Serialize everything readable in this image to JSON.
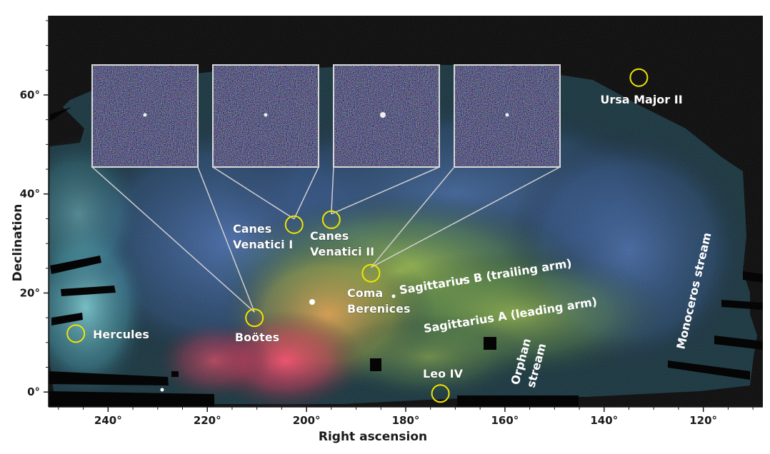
{
  "chart_data": {
    "type": "scatter",
    "xlabel": "Right ascension",
    "ylabel": "Declination",
    "xlim": [
      252,
      108
    ],
    "ylim": [
      -3,
      76
    ],
    "x_ticks": [
      240,
      220,
      200,
      180,
      160,
      140,
      120
    ],
    "x_tick_labels": [
      "240°",
      "220°",
      "200°",
      "180°",
      "160°",
      "140°",
      "120°"
    ],
    "y_ticks": [
      0,
      20,
      40,
      60
    ],
    "y_tick_labels": [
      "0°",
      "20°",
      "40°",
      "60°"
    ],
    "marker_color": "#f2e400",
    "objects": [
      {
        "name": "Ursa Major II",
        "ra": 133,
        "dec": 63.5
      },
      {
        "name": "Canes Venatici I",
        "ra": 202.5,
        "dec": 33.8
      },
      {
        "name": "Canes Venatici II",
        "ra": 195,
        "dec": 34.8
      },
      {
        "name": "Coma Berenices",
        "ra": 187,
        "dec": 24
      },
      {
        "name": "Boötes",
        "ra": 210.5,
        "dec": 15
      },
      {
        "name": "Hercules",
        "ra": 246.5,
        "dec": 11.8
      },
      {
        "name": "Leo IV",
        "ra": 173,
        "dec": -0.3
      }
    ],
    "labels": {
      "ursa_major_ii": "Ursa Major II",
      "canes_venatici_i": [
        "Canes",
        "Venatici I"
      ],
      "canes_venatici_ii": [
        "Canes",
        "Venatici II"
      ],
      "coma_berenices": [
        "Coma",
        "Berenices"
      ],
      "bootes": "Boötes",
      "hercules": "Hercules",
      "leo_iv": "Leo IV"
    },
    "streams": {
      "sagittarius_b": "Sagittarius B (trailing arm)",
      "sagittarius_a": "Sagittarius A (leading arm)",
      "monoceros": "Monoceros stream",
      "orphan": [
        "Orphan",
        "stream"
      ]
    },
    "insets": [
      "Boötes",
      "Canes Venatici I",
      "Canes Venatici II",
      "Coma Berenices"
    ]
  }
}
